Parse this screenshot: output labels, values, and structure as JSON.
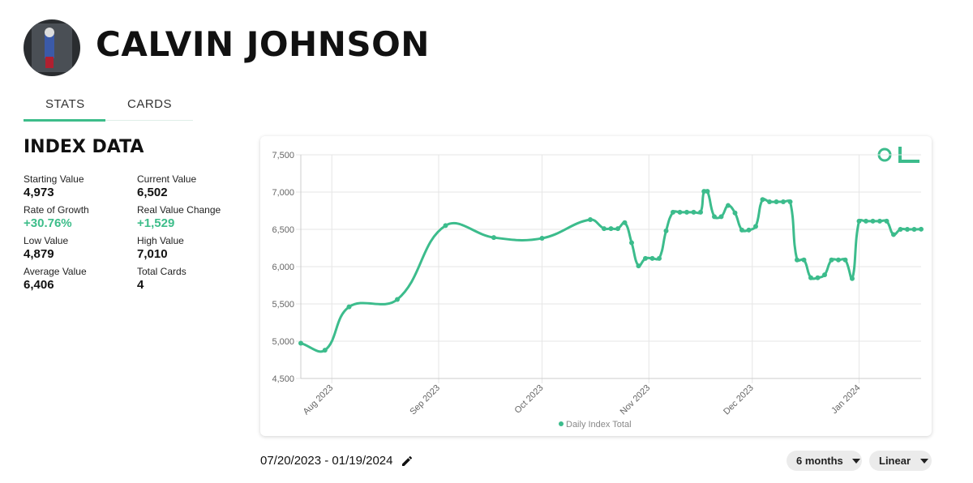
{
  "header": {
    "title": "CALVIN JOHNSON"
  },
  "tabs": [
    "STATS",
    "CARDS"
  ],
  "index_data": {
    "title": "INDEX DATA",
    "stats": [
      {
        "label": "Starting Value",
        "value": "4,973"
      },
      {
        "label": "Current Value",
        "value": "6,502"
      },
      {
        "label": "Rate of Growth",
        "value": "+30.76%",
        "color": "#3dbd8a"
      },
      {
        "label": "Real Value Change",
        "value": "+1,529",
        "color": "#3dbd8a"
      },
      {
        "label": "Low Value",
        "value": "4,879"
      },
      {
        "label": "High Value",
        "value": "7,010"
      },
      {
        "label": "Average Value",
        "value": "6,406"
      },
      {
        "label": "Total Cards",
        "value": "4"
      }
    ]
  },
  "chart_data": {
    "type": "line",
    "series": [
      {
        "name": "Daily Index Total",
        "color": "#3cbc8c",
        "x": [
          3,
          10,
          17,
          31,
          45,
          59,
          73,
          87,
          91,
          93,
          95,
          97,
          99,
          101,
          103,
          105,
          107,
          109,
          111,
          113,
          115,
          117,
          119,
          120,
          121,
          123,
          125,
          127,
          129,
          131,
          133,
          135,
          137,
          139,
          141,
          143,
          145,
          147,
          149,
          151,
          153,
          155,
          157,
          159,
          161,
          163,
          165,
          167,
          169,
          171,
          173,
          175,
          177,
          179,
          181,
          183
        ],
        "values": [
          4973,
          4879,
          5460,
          5560,
          6550,
          6390,
          6380,
          6630,
          6510,
          6510,
          6510,
          6590,
          6320,
          6010,
          6110,
          6110,
          6110,
          6480,
          6730,
          6730,
          6730,
          6730,
          6730,
          7010,
          7010,
          6670,
          6670,
          6820,
          6720,
          6490,
          6490,
          6540,
          6900,
          6870,
          6870,
          6870,
          6870,
          6090,
          6090,
          5850,
          5850,
          5890,
          6090,
          6090,
          6090,
          5840,
          6610,
          6610,
          6610,
          6610,
          6610,
          6430,
          6500,
          6500,
          6500,
          6502
        ]
      }
    ],
    "xlim": [
      3,
      183
    ],
    "xticks": [
      {
        "value": 12,
        "label": "Aug 2023"
      },
      {
        "value": 43,
        "label": "Sep 2023"
      },
      {
        "value": 73,
        "label": "Oct 2023"
      },
      {
        "value": 104,
        "label": "Nov 2023"
      },
      {
        "value": 134,
        "label": "Dec 2023"
      },
      {
        "value": 165,
        "label": "Jan 2024"
      }
    ],
    "ylim": [
      4500,
      7500
    ],
    "yticks": [
      {
        "value": 4500,
        "label": "4,500"
      },
      {
        "value": 5000,
        "label": "5,000"
      },
      {
        "value": 5500,
        "label": "5,500"
      },
      {
        "value": 6000,
        "label": "6,000"
      },
      {
        "value": 6500,
        "label": "6,500"
      },
      {
        "value": 7000,
        "label": "7,000"
      },
      {
        "value": 7500,
        "label": "7,500"
      }
    ],
    "grid": true,
    "legend": "bottom"
  },
  "footer": {
    "date_range": "07/20/2023 - 01/19/2024",
    "period": "6 months",
    "scale": "Linear"
  }
}
